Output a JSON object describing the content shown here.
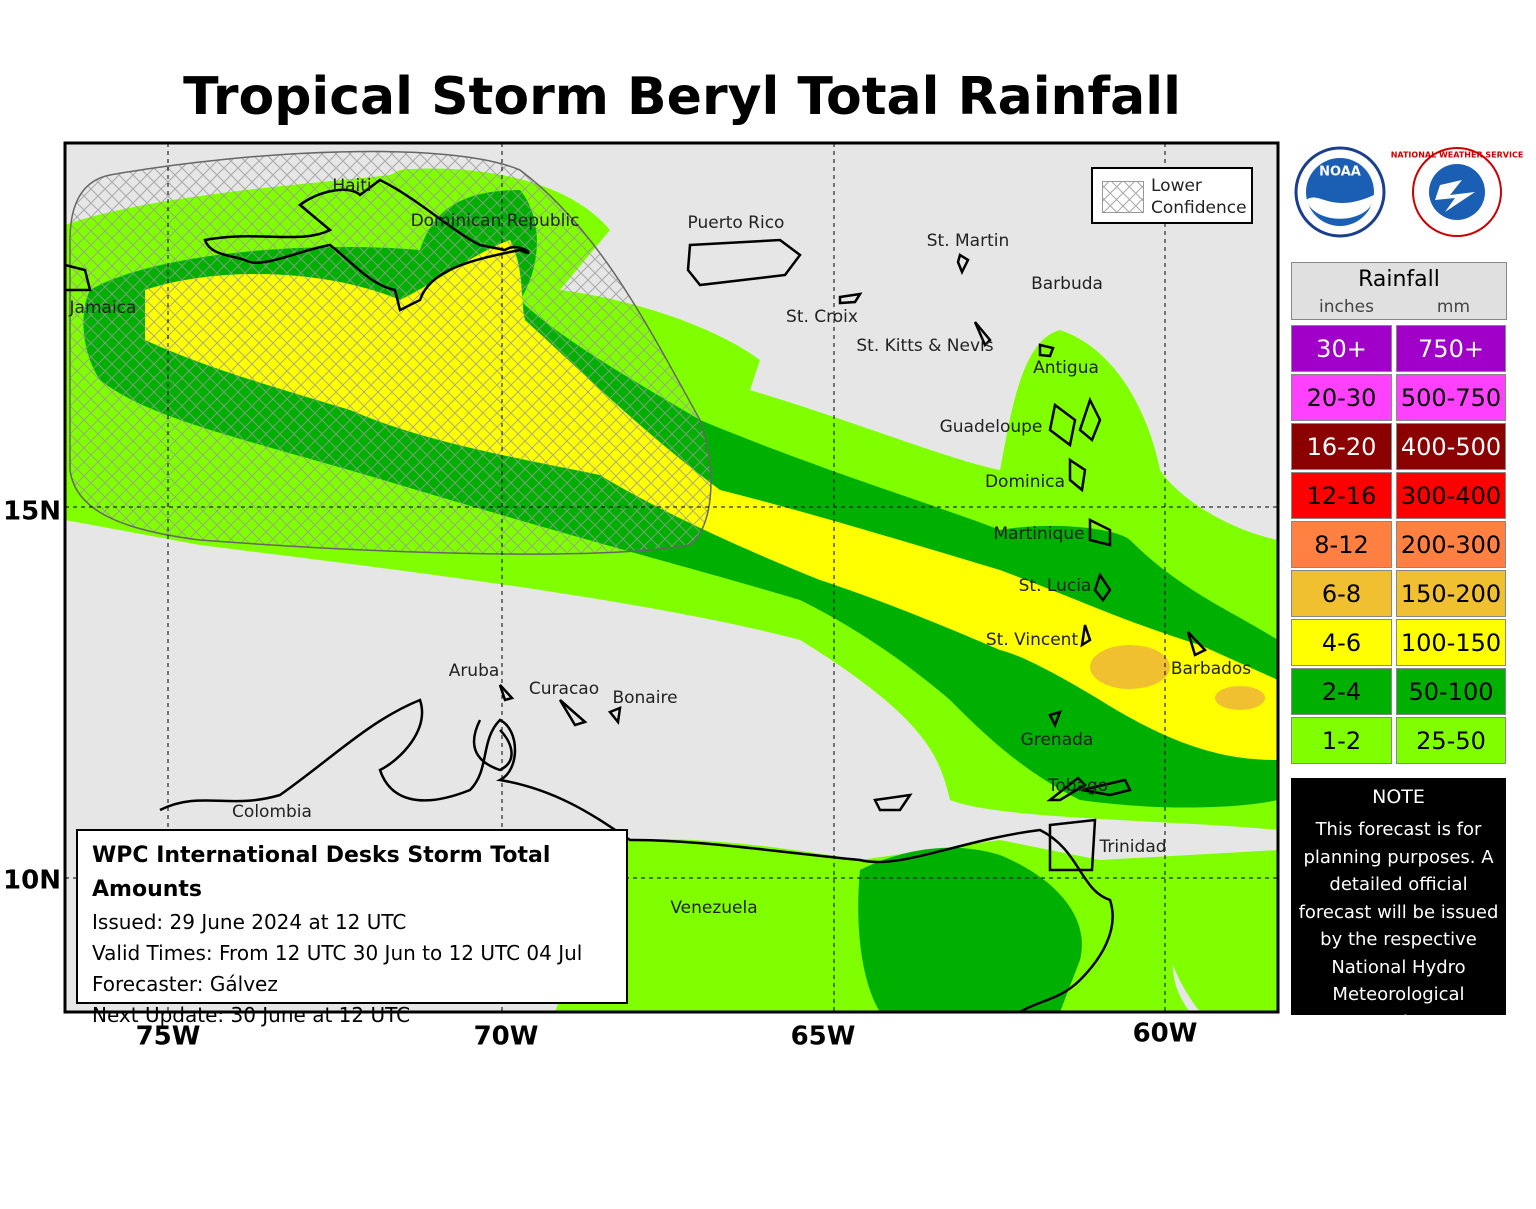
{
  "title": "Tropical Storm Beryl Total Rainfall",
  "map": {
    "lower_confidence": "Lower Confidence",
    "places": [
      "Haiti",
      "Dominican Republic",
      "Jamaica",
      "Puerto Rico",
      "St. Martin",
      "Barbuda",
      "St. Croix",
      "St. Kitts & Nevis",
      "Antigua",
      "Guadeloupe",
      "Dominica",
      "Martinique",
      "St. Lucia",
      "St. Vincent",
      "Barbados",
      "Aruba",
      "Curacao",
      "Bonaire",
      "Grenada",
      "Tobago",
      "Trinidad",
      "Colombia",
      "Venezuela"
    ],
    "longitudes": [
      "75W",
      "70W",
      "65W",
      "60W"
    ],
    "latitudes": [
      "15N",
      "10N"
    ]
  },
  "info_box": {
    "title": "WPC International Desks Storm Total Amounts",
    "lines": [
      "Issued:  29 June 2024 at 12 UTC",
      "Valid Times:  From 12 UTC 30 Jun to 12 UTC 04 Jul",
      "Forecaster: Gálvez",
      "Next Update: 30 June at 12 UTC"
    ]
  },
  "logos": {
    "noaa": "NOAA",
    "nws": "NATIONAL WEATHER SERVICE"
  },
  "rainfall_legend": {
    "title": "Rainfall",
    "units": [
      "inches",
      "mm"
    ],
    "rows": [
      {
        "inches": "30+",
        "mm": "750+",
        "color": "#a000c8",
        "text_color": "#ffffff"
      },
      {
        "inches": "20-30",
        "mm": "500-750",
        "color": "#ff40ff",
        "text_color": "#000000"
      },
      {
        "inches": "16-20",
        "mm": "400-500",
        "color": "#8b0000",
        "text_color": "#ffffff"
      },
      {
        "inches": "12-16",
        "mm": "300-400",
        "color": "#ff0000",
        "text_color": "#000000"
      },
      {
        "inches": "8-12",
        "mm": "200-300",
        "color": "#ff8040",
        "text_color": "#000000"
      },
      {
        "inches": "6-8",
        "mm": "150-200",
        "color": "#f0c030",
        "text_color": "#000000"
      },
      {
        "inches": "4-6",
        "mm": "100-150",
        "color": "#ffff00",
        "text_color": "#000000"
      },
      {
        "inches": "2-4",
        "mm": "50-100",
        "color": "#00b000",
        "text_color": "#000000"
      },
      {
        "inches": "1-2",
        "mm": "25-50",
        "color": "#80ff00",
        "text_color": "#000000"
      }
    ]
  },
  "note": {
    "title": "NOTE",
    "text": "This forecast is for planning purposes. A detailed official forecast will be issued by the respective National Hydro Meteorological Service."
  }
}
